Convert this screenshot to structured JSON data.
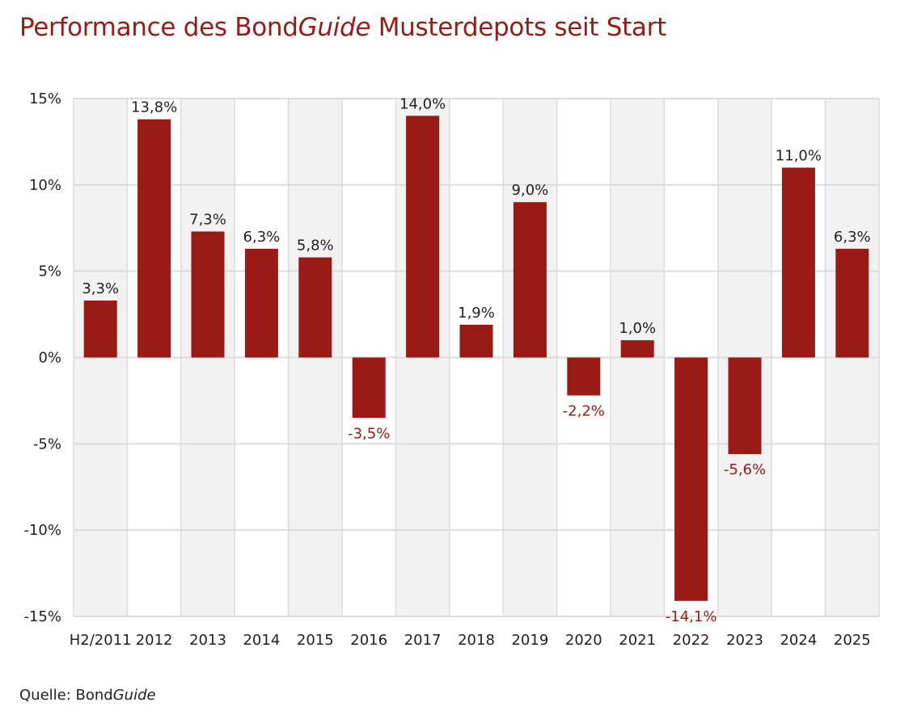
{
  "title": {
    "prefix": "Performance des Bond",
    "italic": "Guide",
    "suffix": " Musterdepots seit Start"
  },
  "source": {
    "prefix": "Quelle: Bond",
    "italic": "Guide"
  },
  "colors": {
    "bar": "#9a1a16",
    "negative_label": "#9a1a16",
    "positive_label": "#222222",
    "band": "#f2f2f2",
    "grid": "#dcdcdc"
  },
  "chart_data": {
    "type": "bar",
    "title": "Performance des BondGuide Musterdepots seit Start",
    "xlabel": "",
    "ylabel": "",
    "categories": [
      "H2/2011",
      "2012",
      "2013",
      "2014",
      "2015",
      "2016",
      "2017",
      "2018",
      "2019",
      "2020",
      "2021",
      "2022",
      "2023",
      "2024",
      "2025"
    ],
    "values": [
      3.3,
      13.8,
      7.3,
      6.3,
      5.8,
      -3.5,
      14.0,
      1.9,
      9.0,
      -2.2,
      1.0,
      -14.1,
      -5.6,
      11.0,
      6.3
    ],
    "data_labels": [
      "3,3%",
      "13,8%",
      "7,3%",
      "6,3%",
      "5,8%",
      "-3,5%",
      "14,0%",
      "1,9%",
      "9,0%",
      "-2,2%",
      "1,0%",
      "-14,1%",
      "-5,6%",
      "11,0%",
      "6,3%"
    ],
    "ylim": [
      -15,
      15
    ],
    "yticks": [
      15,
      10,
      5,
      0,
      -5,
      -10,
      -15
    ],
    "ytick_labels": [
      "15%",
      "10%",
      "5%",
      "0%",
      "-5%",
      "-10%",
      "-15%"
    ],
    "grid": true,
    "legend": "none"
  }
}
